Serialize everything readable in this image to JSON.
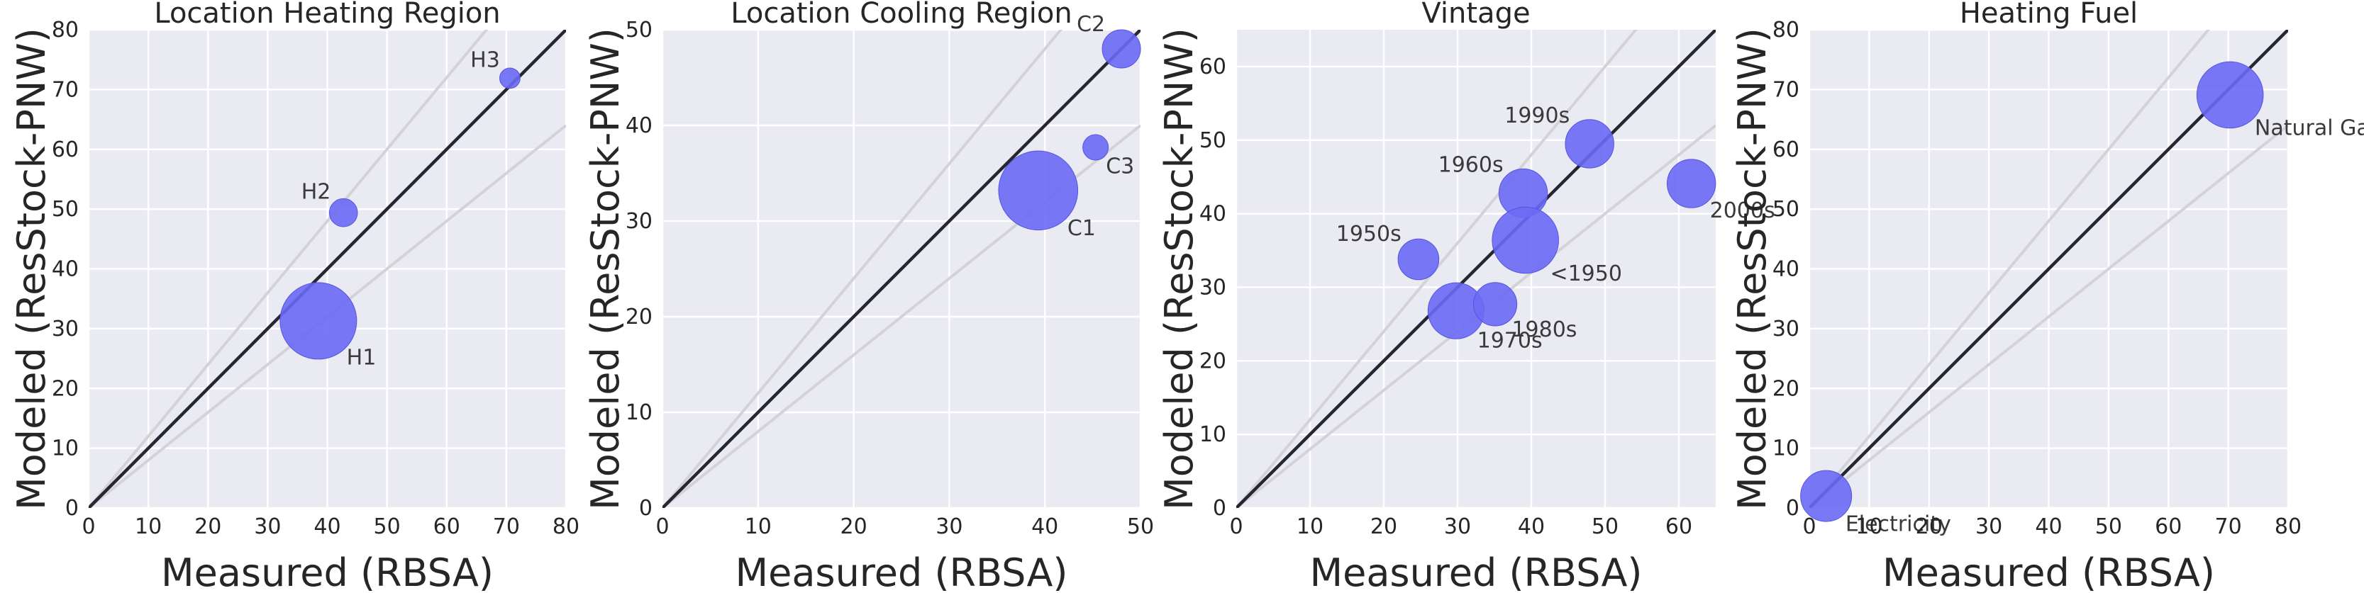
{
  "chart_data": [
    {
      "type": "scatter",
      "title": "Location Heating Region",
      "xlabel": "Measured (RBSA)",
      "ylabel": "Modeled (ResStock-PNW)",
      "xlim": [
        0,
        80
      ],
      "ylim": [
        0,
        80
      ],
      "xticks": [
        0,
        10,
        20,
        30,
        40,
        50,
        60,
        70,
        80
      ],
      "yticks": [
        0,
        10,
        20,
        30,
        40,
        50,
        60,
        70,
        80
      ],
      "grid": true,
      "reference_lines": {
        "identity": true,
        "bands": [
          "+20%",
          "-20%"
        ]
      },
      "points": [
        {
          "label": "H1",
          "x": 38.5,
          "y": 31.3,
          "size": 3.0,
          "label_pos": "below-right"
        },
        {
          "label": "H2",
          "x": 42.7,
          "y": 49.4,
          "size": 1.1,
          "label_pos": "upper-left"
        },
        {
          "label": "H3",
          "x": 70.6,
          "y": 71.9,
          "size": 0.8,
          "label_pos": "upper-left"
        }
      ]
    },
    {
      "type": "scatter",
      "title": "Location Cooling Region",
      "xlabel": "Measured (RBSA)",
      "ylabel": "Modeled (ResStock-PNW)",
      "xlim": [
        0,
        50
      ],
      "ylim": [
        0,
        50
      ],
      "xticks": [
        0,
        10,
        20,
        30,
        40,
        50
      ],
      "yticks": [
        0,
        10,
        20,
        30,
        40,
        50
      ],
      "grid": true,
      "reference_lines": {
        "identity": true,
        "bands": [
          "+20%",
          "-20%"
        ]
      },
      "points": [
        {
          "label": "C1",
          "x": 39.3,
          "y": 33.2,
          "size": 3.1,
          "label_pos": "below-right"
        },
        {
          "label": "C2",
          "x": 48.0,
          "y": 48.0,
          "size": 1.5,
          "label_pos": "upper-left"
        },
        {
          "label": "C3",
          "x": 45.3,
          "y": 37.7,
          "size": 1.0,
          "label_pos": "below-right"
        }
      ]
    },
    {
      "type": "scatter",
      "title": "Vintage",
      "xlabel": "Measured (RBSA)",
      "ylabel": "Modeled (ResStock-PNW)",
      "xlim": [
        0,
        65
      ],
      "ylim": [
        0,
        65
      ],
      "xticks": [
        0,
        10,
        20,
        30,
        40,
        50,
        60
      ],
      "yticks": [
        0,
        10,
        20,
        30,
        40,
        50,
        60
      ],
      "grid": true,
      "reference_lines": {
        "identity": true,
        "bands": [
          "+20%",
          "-20%"
        ]
      },
      "points": [
        {
          "label": "1950s",
          "x": 24.7,
          "y": 33.8,
          "size": 1.6,
          "label_pos": "upper-left"
        },
        {
          "label": "1960s",
          "x": 38.9,
          "y": 42.8,
          "size": 1.9,
          "label_pos": "upper-left"
        },
        {
          "label": "1970s",
          "x": 29.8,
          "y": 26.8,
          "size": 2.2,
          "label_pos": "below-right"
        },
        {
          "label": "1980s",
          "x": 35.1,
          "y": 27.7,
          "size": 1.7,
          "label_pos": "below-right"
        },
        {
          "label": "1990s",
          "x": 47.9,
          "y": 49.5,
          "size": 1.9,
          "label_pos": "upper-left"
        },
        {
          "label": "2000s",
          "x": 61.7,
          "y": 44.1,
          "size": 1.9,
          "label_pos": "below-right"
        },
        {
          "label": "<1950",
          "x": 39.2,
          "y": 36.4,
          "size": 2.6,
          "label_pos": "below-right"
        }
      ]
    },
    {
      "type": "scatter",
      "title": "Heating Fuel",
      "xlabel": "Measured (RBSA)",
      "ylabel": "Modeled (ResStock-PNW)",
      "xlim": [
        0,
        80
      ],
      "ylim": [
        0,
        80
      ],
      "xticks": [
        0,
        10,
        20,
        30,
        40,
        50,
        60,
        70,
        80
      ],
      "yticks": [
        0,
        10,
        20,
        30,
        40,
        50,
        60,
        70,
        80
      ],
      "grid": true,
      "reference_lines": {
        "identity": true,
        "bands": [
          "+20%",
          "-20%"
        ]
      },
      "points": [
        {
          "label": "Electricity",
          "x": 2.8,
          "y": 2.0,
          "size": 2.0,
          "label_pos": "below-right"
        },
        {
          "label": "Natural Gas",
          "x": 70.3,
          "y": 69.1,
          "size": 2.6,
          "label_pos": "below-right"
        }
      ]
    }
  ],
  "colors": {
    "bubble": "#6a6af5",
    "panel_background": "#eaeaf2",
    "identity_line": "#262633",
    "band_lines": "#d3d3d7"
  }
}
